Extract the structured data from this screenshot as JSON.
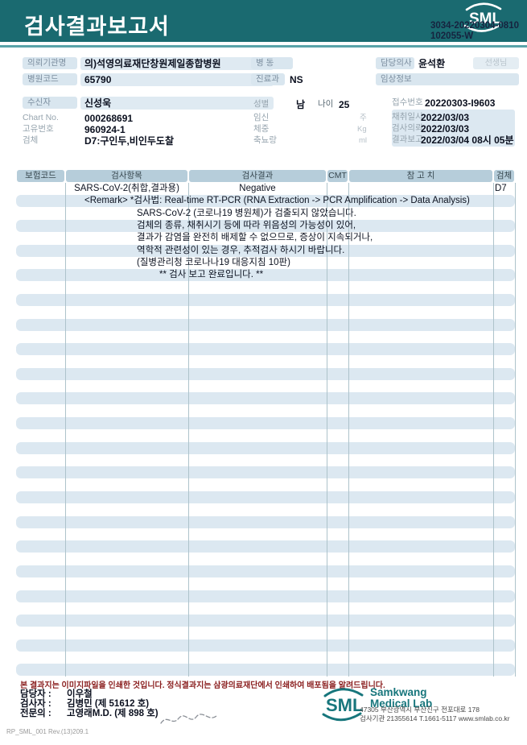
{
  "header": {
    "title": "검사결과보고서",
    "logo_text": "SML",
    "doc_no_line1": "3034-20220304-0810",
    "doc_no_line2": "102055-W"
  },
  "info": {
    "left": [
      {
        "label": "의뢰기관명",
        "value": "의)석영의료재단창원제일종합병원"
      },
      {
        "label": "병원코드",
        "value": "65790"
      },
      {
        "label": "수신자",
        "value": "신성욱"
      },
      {
        "label": "Chart No.",
        "value": "000268691"
      },
      {
        "label": "고유번호",
        "value": "960924-1"
      },
      {
        "label": "검체",
        "value": "D7:구인두,비인두도찰"
      }
    ],
    "middle": {
      "ward_label": "병  동",
      "dept_label": "진료과",
      "dept_value": "NS",
      "sex_label": "성별",
      "sex_value": "남",
      "age_label": "나이",
      "age_value": "25",
      "pregnancy_label": "임신",
      "pregnancy_unit": "주",
      "weight_label": "체중",
      "weight_unit": "Kg",
      "urine_label": "축뇨랑",
      "urine_unit": "ml"
    },
    "right": {
      "doctor_label": "담당의사",
      "doctor_value": "윤석환",
      "doctor_suffix": "선생님",
      "clinical_label": "임상정보",
      "receipt_label": "접수번호",
      "receipt_value": "20220303-I9603",
      "collect_label": "채취일시",
      "collect_value": "2022/03/03",
      "request_label": "검사의뢰",
      "request_value": "2022/03/03",
      "report_label": "결과보고",
      "report_value": "2022/03/04 08시 05분"
    }
  },
  "table": {
    "headers": [
      "보험코드",
      "검사항목",
      "검사결과",
      "CMT",
      "참 고 치",
      "검체"
    ],
    "first_row": {
      "item": "SARS-CoV-2(취합,결과용)",
      "result": "Negative",
      "specimen": "D7"
    },
    "remarks": [
      {
        "text": "<Remark> *검사법: Real-time RT-PCR (RNA Extraction -> PCR Amplification -> Data Analysis)",
        "indent": 85
      },
      {
        "text": "SARS-CoV-2 (코로나19 병원체)가 검출되지 않았습니다.",
        "indent": 150
      },
      {
        "text": "검체의 종류, 채취시기 등에 따라 위음성의 가능성이 있어,",
        "indent": 150
      },
      {
        "text": "결과가 감염을 완전히 배제할 수 없으므로, 증상이 지속되거나,",
        "indent": 150
      },
      {
        "text": "역학적 관련성이 있는 경우, 추적검사 하시기 바랍니다.",
        "indent": 150
      },
      {
        "text": "(질병관리청 코로나나19 대응지침 10판)",
        "indent": 150
      },
      {
        "text": "** 검사 보고 완료입니다. **",
        "indent": 178
      }
    ],
    "total_rows": 40,
    "row_height": 15.32,
    "column_lines": [
      61,
      214,
      386,
      413,
      593,
      620
    ]
  },
  "footer": {
    "disclaimer": "본 결과지는 이미지파일을 인쇄한 것입니다. 정식결과지는 삼광의료재단에서 인쇄하여 배포됨을 알려드립니다.",
    "staff": [
      {
        "label": "담당자 :",
        "value": "이우철"
      },
      {
        "label": "검사자 :",
        "value": "김병민 (제 51612 호)"
      },
      {
        "label": "전문의 :",
        "value": "고영래M.D. (제 898 호)"
      }
    ],
    "logo_text": "SML",
    "lab_name_line1": "Samkwang",
    "lab_name_line2": "Medical Lab",
    "address": "47305 부산광역시 부산진구 전포대로 178",
    "contact": "검사기관 21355614 T.1661-5117 www.smlab.co.kr",
    "doc_rev": "RP_SML_001 Rev.(13)209.1"
  },
  "colors": {
    "brand_teal": "#1a6a70",
    "accent_line": "#5aa3a9",
    "stripe_blue": "#dce8f1",
    "header_cell_blue": "#b6cdda",
    "label_pill": "#d9e6ef",
    "disclaimer_red": "#8b2020",
    "logo_teal": "#17767c"
  }
}
